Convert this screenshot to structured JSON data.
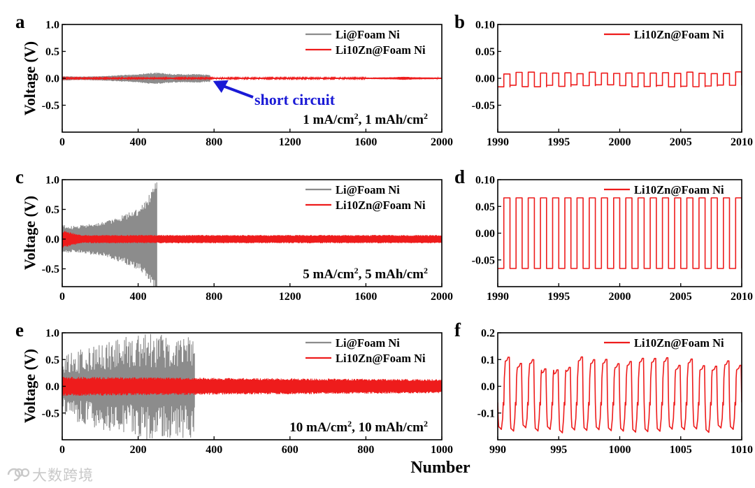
{
  "figure": {
    "x_label": "Number",
    "y_label": "Voltage (V)",
    "watermark": "大数跨境",
    "annotation": "short circuit"
  },
  "colors": {
    "red": "#ee1c1c",
    "gray": "#8c8c8c",
    "blue": "#1a1ad6",
    "black": "#000000"
  },
  "chart_data": [
    {
      "panel": "a",
      "type": "line",
      "kind": "overview",
      "condition": "1 mA/cm², 1 mAh/cm²",
      "xlim": [
        0,
        2000
      ],
      "ylim": [
        -1.0,
        1.0
      ],
      "xticks": [
        0,
        400,
        800,
        1200,
        1600,
        2000
      ],
      "yticks": [
        1.0,
        0.5,
        0.0,
        -0.5
      ],
      "ytick_labels": [
        "1.0",
        "0.5",
        "0.0",
        "-0.5"
      ],
      "legend": [
        "Li@Foam Ni",
        "Li10Zn@Foam Ni"
      ],
      "series": [
        {
          "name": "Li@Foam Ni",
          "color": "gray",
          "x_end": 780,
          "envelope": {
            "x": [
              0,
              100,
              200,
              300,
              400,
              450,
              500,
              550,
              600,
              700,
              780
            ],
            "amp": [
              0.04,
              0.03,
              0.04,
              0.06,
              0.08,
              0.1,
              0.11,
              0.09,
              0.08,
              0.08,
              0.07
            ]
          }
        },
        {
          "name": "Li10Zn@Foam Ni",
          "color": "red",
          "x_end": 2000,
          "envelope": {
            "x": [
              0,
              1600,
              1750,
              1800,
              1850,
              2000
            ],
            "amp": [
              0.012,
              0.012,
              0.02,
              0.03,
              0.02,
              0.012
            ]
          }
        }
      ],
      "annotation_text": "short circuit",
      "annotation_x": 780
    },
    {
      "panel": "b",
      "type": "line",
      "kind": "zoom",
      "xlim": [
        1990,
        2010
      ],
      "ylim": [
        -0.1,
        0.1
      ],
      "xticks": [
        1990,
        1995,
        2000,
        2005,
        2010
      ],
      "yticks": [
        0.1,
        0.05,
        0.0,
        -0.05
      ],
      "ytick_labels": [
        "0.10",
        "0.05",
        "0.00",
        "-0.05"
      ],
      "legend": [
        "Li10Zn@Foam Ni"
      ],
      "series": [
        {
          "name": "Li10Zn@Foam Ni",
          "color": "red",
          "high": 0.01,
          "low": -0.014
        }
      ]
    },
    {
      "panel": "c",
      "type": "line",
      "kind": "overview",
      "condition": "5 mA/cm², 5 mAh/cm²",
      "xlim": [
        0,
        2000
      ],
      "ylim": [
        -0.8,
        1.0
      ],
      "xticks": [
        0,
        400,
        800,
        1200,
        1600,
        2000
      ],
      "yticks": [
        1.0,
        0.5,
        0.0,
        -0.5
      ],
      "ytick_labels": [
        "1.0",
        "0.5",
        "0.0",
        "-0.5"
      ],
      "legend": [
        "Li@Foam Ni",
        "Li10Zn@Foam Ni"
      ],
      "series": [
        {
          "name": "Li@Foam Ni",
          "color": "gray",
          "x_end": 500,
          "envelope": {
            "x": [
              0,
              50,
              100,
              200,
              300,
              400,
              450,
              500
            ],
            "amp": [
              0.25,
              0.22,
              0.24,
              0.28,
              0.38,
              0.52,
              0.7,
              1.0
            ]
          }
        },
        {
          "name": "Li10Zn@Foam Ni",
          "color": "red",
          "x_end": 2000,
          "envelope": {
            "x": [
              0,
              100,
              2000
            ],
            "amp": [
              0.15,
              0.07,
              0.07
            ]
          }
        }
      ]
    },
    {
      "panel": "d",
      "type": "line",
      "kind": "zoom",
      "xlim": [
        1990,
        2010
      ],
      "ylim": [
        -0.1,
        0.1
      ],
      "xticks": [
        1990,
        1995,
        2000,
        2005,
        2010
      ],
      "yticks": [
        0.1,
        0.05,
        0.0,
        -0.05
      ],
      "ytick_labels": [
        "0.10",
        "0.05",
        "0.00",
        "-0.05"
      ],
      "legend": [
        "Li10Zn@Foam Ni"
      ],
      "series": [
        {
          "name": "Li10Zn@Foam Ni",
          "color": "red",
          "high": 0.066,
          "low": -0.066
        }
      ]
    },
    {
      "panel": "e",
      "type": "line",
      "kind": "overview",
      "condition": "10 mA/cm², 10 mAh/cm²",
      "xlim": [
        0,
        1000
      ],
      "ylim": [
        -1.0,
        1.0
      ],
      "xticks": [
        0,
        200,
        400,
        600,
        800,
        1000
      ],
      "yticks": [
        1.0,
        0.5,
        0.0,
        -0.5
      ],
      "ytick_labels": [
        "1.0",
        "0.5",
        "0.0",
        "-0.5"
      ],
      "legend": [
        "Li@Foam Ni",
        "Li10Zn@Foam Ni"
      ],
      "series": [
        {
          "name": "Li@Foam Ni",
          "color": "gray",
          "x_end": 350,
          "envelope": {
            "x": [
              0,
              100,
              200,
              300,
              350
            ],
            "amp": [
              0.6,
              0.8,
              1.0,
              1.0,
              1.0
            ]
          }
        },
        {
          "name": "Li10Zn@Foam Ni",
          "color": "red",
          "x_end": 1000,
          "envelope": {
            "x": [
              0,
              350,
              1000
            ],
            "amp": [
              0.18,
              0.16,
              0.13
            ]
          }
        }
      ]
    },
    {
      "panel": "f",
      "type": "line",
      "kind": "zoom",
      "xlim": [
        990,
        1010
      ],
      "ylim": [
        -0.2,
        0.2
      ],
      "xticks": [
        990,
        995,
        1000,
        1005,
        1010
      ],
      "yticks": [
        0.2,
        0.1,
        0.0,
        -0.1
      ],
      "ytick_labels": [
        "0.2",
        "0.1",
        "0.0",
        "-0.1"
      ],
      "legend": [
        "Li10Zn@Foam Ni"
      ],
      "series": [
        {
          "name": "Li10Zn@Foam Ni",
          "color": "red",
          "high": 0.11,
          "low": -0.155
        }
      ]
    }
  ]
}
